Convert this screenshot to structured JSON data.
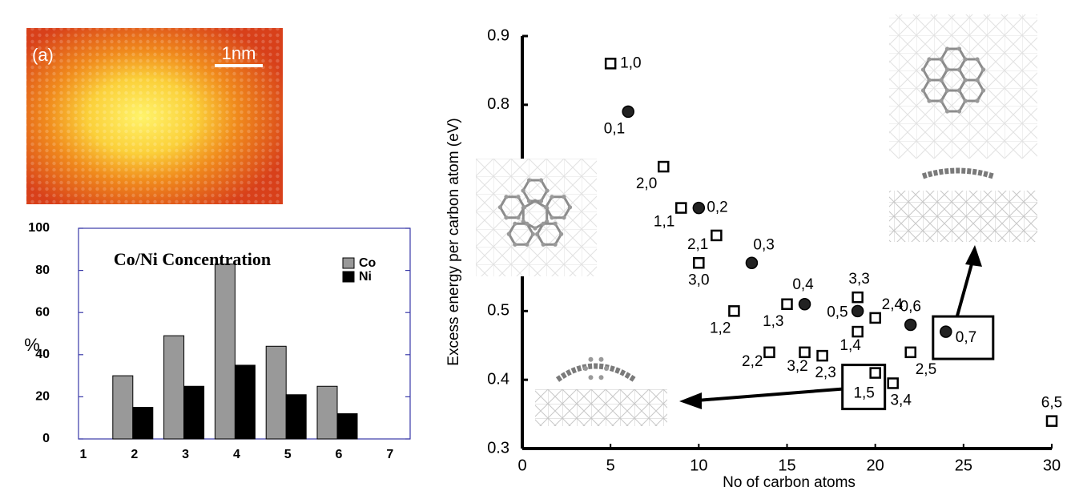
{
  "image": {
    "panel_label": "(a)",
    "scale_label": "1nm"
  },
  "chart_data": [
    {
      "type": "bar",
      "title": "Co/Ni Concentration",
      "y_label": "%",
      "categories": [
        "1",
        "2",
        "3",
        "4",
        "5",
        "6",
        "7"
      ],
      "series": [
        {
          "name": "Co",
          "color": "#999999",
          "values": [
            null,
            30,
            49,
            83,
            44,
            25,
            null
          ]
        },
        {
          "name": "Ni",
          "color": "#000000",
          "values": [
            null,
            15,
            25,
            35,
            21,
            12,
            null
          ]
        }
      ],
      "ylim": [
        0,
        100
      ],
      "yticks": [
        0,
        20,
        40,
        60,
        80,
        100
      ],
      "legend": "upper right"
    },
    {
      "type": "scatter",
      "x_label": "No of carbon atoms",
      "y_label": "Excess energy per carbon atom (eV)",
      "xlim": [
        0,
        30
      ],
      "xticks": [
        0,
        5,
        10,
        15,
        20,
        25,
        30
      ],
      "ylim": [
        0.3,
        0.9
      ],
      "yticks": [
        0.3,
        0.4,
        0.5,
        0.8,
        0.9
      ],
      "series": [
        {
          "marker": "square",
          "color": "#000000",
          "x": [
            5,
            8,
            9,
            11,
            10,
            12,
            15,
            14,
            16,
            17,
            19,
            19,
            20,
            20,
            21,
            22,
            30
          ],
          "values": [
            0.86,
            0.71,
            0.65,
            0.61,
            0.57,
            0.5,
            0.51,
            0.44,
            0.44,
            0.435,
            0.47,
            0.52,
            0.49,
            0.41,
            0.395,
            0.44,
            0.34
          ],
          "point_labels": [
            "1,0",
            "2,0",
            "1,1",
            "2,1",
            "3,0",
            "1,2",
            "1,3",
            "2,2",
            "3,2",
            "2,3",
            "1,4",
            "3,3",
            "2,4",
            "1,5",
            "3,4",
            "2,5",
            "6,5"
          ]
        },
        {
          "marker": "circle",
          "color": "#222222",
          "x": [
            6,
            10,
            13,
            16,
            19,
            22,
            24
          ],
          "values": [
            0.79,
            0.65,
            0.57,
            0.51,
            0.5,
            0.48,
            0.47
          ],
          "point_labels": [
            "0,1",
            "0,2",
            "0,3",
            "0,4",
            "0,5",
            "0,6",
            "0,7"
          ]
        }
      ]
    }
  ]
}
